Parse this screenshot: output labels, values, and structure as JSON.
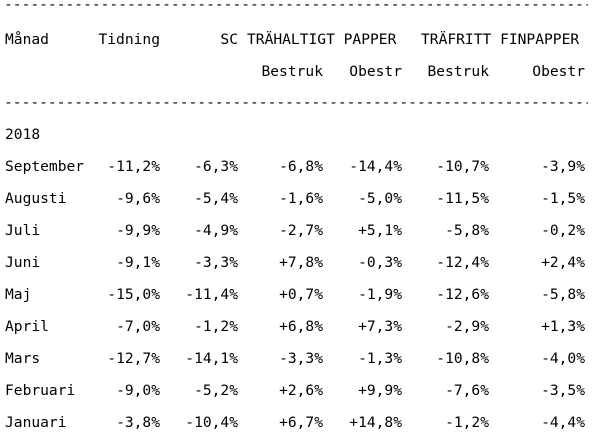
{
  "rule_text": "------------------------------------------------------------------------",
  "header": {
    "month": "Månad",
    "col1": "Tidning",
    "col2": "SC",
    "group1": "TRÄHALTIGT PAPPER",
    "group2": "TRÄFRITT FINPAPPER",
    "sub1": "Bestruk",
    "sub2": "Obestr",
    "sub3": "Bestruk",
    "sub4": "Obestr"
  },
  "year": "2018",
  "rows": [
    {
      "month": "September",
      "v": [
        "-11,2%",
        "-6,3%",
        "-6,8%",
        "-14,4%",
        "-10,7%",
        "-3,9%"
      ]
    },
    {
      "month": "Augusti",
      "v": [
        "-9,6%",
        "-5,4%",
        "-1,6%",
        "-5,0%",
        "-11,5%",
        "-1,5%"
      ]
    },
    {
      "month": "Juli",
      "v": [
        "-9,9%",
        "-4,9%",
        "-2,7%",
        "+5,1%",
        "-5,8%",
        "-0,2%"
      ]
    },
    {
      "month": "Juni",
      "v": [
        "-9,1%",
        "-3,3%",
        "+7,8%",
        "-0,3%",
        "-12,4%",
        "+2,4%"
      ]
    },
    {
      "month": "Maj",
      "v": [
        "-15,0%",
        "-11,4%",
        "+0,7%",
        "-1,9%",
        "-12,6%",
        "-5,8%"
      ]
    },
    {
      "month": "April",
      "v": [
        "-7,0%",
        "-1,2%",
        "+6,8%",
        "+7,3%",
        "-2,9%",
        "+1,3%"
      ]
    },
    {
      "month": "Mars",
      "v": [
        "-12,7%",
        "-14,1%",
        "-3,3%",
        "-1,3%",
        "-10,8%",
        "-4,0%"
      ]
    },
    {
      "month": "Februari",
      "v": [
        "-9,0%",
        "-5,2%",
        "+2,6%",
        "+9,9%",
        "-7,6%",
        "-3,5%"
      ]
    },
    {
      "month": "Januari",
      "v": [
        "-3,8%",
        "-10,4%",
        "+6,7%",
        "+14,8%",
        "-1,2%",
        "-4,4%"
      ]
    }
  ]
}
